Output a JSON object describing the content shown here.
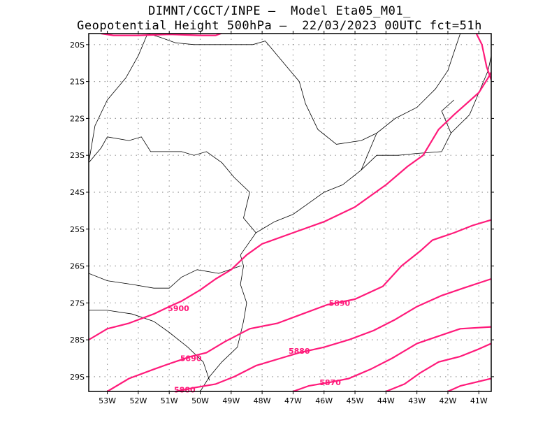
{
  "title_line1": "DIMNT/CGCT/INPE –  Model Eta05_M01_",
  "title_line2": "Geopotential Height 500hPa –  22/03/2023 00UTC fct=51h",
  "contour_color": "#ff1a7a",
  "map": {
    "lon_range": [
      -53.6,
      -40.6
    ],
    "lat_range": [
      -29.4,
      -19.7
    ],
    "lat_ticks": [
      {
        "value": -20,
        "label": "20S"
      },
      {
        "value": -21,
        "label": "21S"
      },
      {
        "value": -22,
        "label": "22S"
      },
      {
        "value": -23,
        "label": "23S"
      },
      {
        "value": -24,
        "label": "24S"
      },
      {
        "value": -25,
        "label": "25S"
      },
      {
        "value": -26,
        "label": "26S"
      },
      {
        "value": -27,
        "label": "27S"
      },
      {
        "value": -28,
        "label": "28S"
      },
      {
        "value": -29,
        "label": "29S"
      }
    ],
    "lon_ticks": [
      {
        "value": -53,
        "label": "53W"
      },
      {
        "value": -52,
        "label": "52W"
      },
      {
        "value": -51,
        "label": "51W"
      },
      {
        "value": -50,
        "label": "50W"
      },
      {
        "value": -49,
        "label": "49W"
      },
      {
        "value": -48,
        "label": "48W"
      },
      {
        "value": -47,
        "label": "47W"
      },
      {
        "value": -46,
        "label": "46W"
      },
      {
        "value": -45,
        "label": "45W"
      },
      {
        "value": -44,
        "label": "44W"
      },
      {
        "value": -43,
        "label": "43W"
      },
      {
        "value": -42,
        "label": "42W"
      },
      {
        "value": -41,
        "label": "41W"
      }
    ],
    "grid": "dotted"
  },
  "contour_labels": [
    {
      "text": "5900",
      "lon": -50.7,
      "lat": -27.15
    },
    {
      "text": "5890",
      "lon": -50.3,
      "lat": -28.5
    },
    {
      "text": "5890",
      "lon": -45.5,
      "lat": -27.0
    },
    {
      "text": "5880",
      "lon": -46.8,
      "lat": -28.3
    },
    {
      "text": "5880",
      "lon": -50.5,
      "lat": -29.35
    },
    {
      "text": "5870",
      "lon": -45.8,
      "lat": -29.15
    }
  ],
  "contours": [
    {
      "name": "5910-top",
      "pts": [
        [
          -53.2,
          -19.7
        ],
        [
          -52.8,
          -19.75
        ],
        [
          -52.0,
          -19.75
        ],
        [
          -51.0,
          -19.72
        ],
        [
          -50.0,
          -19.75
        ],
        [
          -49.5,
          -19.75
        ],
        [
          -49.0,
          -19.6
        ]
      ]
    },
    {
      "name": "5910-east",
      "pts": [
        [
          -41.2,
          -19.5
        ],
        [
          -40.9,
          -20.0
        ],
        [
          -40.75,
          -20.6
        ],
        [
          -40.6,
          -20.95
        ]
      ]
    },
    {
      "name": "5900",
      "pts": [
        [
          -53.6,
          -28.0
        ],
        [
          -53.0,
          -27.7
        ],
        [
          -52.3,
          -27.55
        ],
        [
          -51.5,
          -27.3
        ],
        [
          -51.0,
          -27.1
        ],
        [
          -50.6,
          -26.95
        ],
        [
          -50.0,
          -26.65
        ],
        [
          -49.5,
          -26.35
        ],
        [
          -49.0,
          -26.1
        ],
        [
          -48.5,
          -25.7
        ],
        [
          -48.0,
          -25.4
        ],
        [
          -47.0,
          -25.1
        ],
        [
          -46.0,
          -24.8
        ],
        [
          -45.0,
          -24.4
        ],
        [
          -44.0,
          -23.8
        ],
        [
          -43.3,
          -23.3
        ],
        [
          -42.8,
          -23.0
        ],
        [
          -42.3,
          -22.3
        ],
        [
          -41.8,
          -21.9
        ],
        [
          -41.0,
          -21.3
        ],
        [
          -40.7,
          -20.9
        ],
        [
          -40.6,
          -20.75
        ]
      ]
    },
    {
      "name": "5890",
      "pts": [
        [
          -53.0,
          -29.4
        ],
        [
          -52.3,
          -29.05
        ],
        [
          -51.5,
          -28.8
        ],
        [
          -51.0,
          -28.65
        ],
        [
          -50.3,
          -28.45
        ],
        [
          -49.8,
          -28.35
        ],
        [
          -49.2,
          -28.05
        ],
        [
          -48.4,
          -27.7
        ],
        [
          -47.5,
          -27.55
        ],
        [
          -46.7,
          -27.3
        ],
        [
          -45.9,
          -27.05
        ],
        [
          -45.0,
          -26.9
        ],
        [
          -44.1,
          -26.55
        ],
        [
          -43.5,
          -26.0
        ],
        [
          -42.9,
          -25.6
        ],
        [
          -42.5,
          -25.3
        ],
        [
          -41.8,
          -25.1
        ],
        [
          -41.2,
          -24.9
        ],
        [
          -40.6,
          -24.75
        ]
      ]
    },
    {
      "name": "5880",
      "pts": [
        [
          -50.8,
          -29.4
        ],
        [
          -50.2,
          -29.3
        ],
        [
          -49.5,
          -29.2
        ],
        [
          -48.9,
          -29.0
        ],
        [
          -48.2,
          -28.7
        ],
        [
          -47.4,
          -28.5
        ],
        [
          -46.8,
          -28.35
        ],
        [
          -46.0,
          -28.2
        ],
        [
          -45.2,
          -28.0
        ],
        [
          -44.4,
          -27.75
        ],
        [
          -43.7,
          -27.45
        ],
        [
          -43.0,
          -27.1
        ],
        [
          -42.2,
          -26.8
        ],
        [
          -41.5,
          -26.6
        ],
        [
          -40.6,
          -26.35
        ]
      ]
    },
    {
      "name": "5870",
      "pts": [
        [
          -47.0,
          -29.4
        ],
        [
          -46.5,
          -29.25
        ],
        [
          -45.8,
          -29.15
        ],
        [
          -45.2,
          -29.05
        ],
        [
          -44.5,
          -28.8
        ],
        [
          -43.8,
          -28.5
        ],
        [
          -43.0,
          -28.1
        ],
        [
          -42.3,
          -27.9
        ],
        [
          -41.6,
          -27.7
        ],
        [
          -40.6,
          -27.65
        ]
      ]
    },
    {
      "name": "5860",
      "pts": [
        [
          -44.0,
          -29.4
        ],
        [
          -43.4,
          -29.2
        ],
        [
          -42.9,
          -28.9
        ],
        [
          -42.3,
          -28.6
        ],
        [
          -41.6,
          -28.45
        ],
        [
          -41.0,
          -28.25
        ],
        [
          -40.6,
          -28.1
        ]
      ]
    },
    {
      "name": "5850",
      "pts": [
        [
          -42.0,
          -29.4
        ],
        [
          -41.6,
          -29.25
        ],
        [
          -41.1,
          -29.15
        ],
        [
          -40.6,
          -29.05
        ]
      ]
    }
  ],
  "coastline": [
    [
      -48.7,
      -25.7
    ],
    [
      -48.6,
      -26.0
    ],
    [
      -48.7,
      -26.5
    ],
    [
      -48.5,
      -27.0
    ],
    [
      -48.6,
      -27.5
    ],
    [
      -48.8,
      -28.2
    ],
    [
      -49.3,
      -28.6
    ],
    [
      -49.7,
      -29.0
    ],
    [
      -50.0,
      -29.4
    ]
  ],
  "coastline_north": [
    [
      -48.7,
      -25.7
    ],
    [
      -48.2,
      -25.1
    ],
    [
      -47.6,
      -24.8
    ],
    [
      -47.0,
      -24.6
    ],
    [
      -46.5,
      -24.3
    ],
    [
      -46.0,
      -24.0
    ],
    [
      -45.4,
      -23.8
    ],
    [
      -44.8,
      -23.4
    ],
    [
      -44.3,
      -23.0
    ],
    [
      -43.6,
      -23.0
    ],
    [
      -43.0,
      -22.95
    ],
    [
      -42.2,
      -22.9
    ],
    [
      -41.9,
      -22.4
    ],
    [
      -41.3,
      -21.9
    ],
    [
      -41.0,
      -21.3
    ],
    [
      -40.7,
      -20.7
    ],
    [
      -40.6,
      -20.3
    ]
  ],
  "borders": [
    [
      [
        -53.6,
        -23.2
      ],
      [
        -53.2,
        -22.8
      ],
      [
        -53.0,
        -22.5
      ],
      [
        -52.3,
        -22.6
      ],
      [
        -51.9,
        -22.5
      ],
      [
        -51.6,
        -22.9
      ],
      [
        -51.0,
        -22.9
      ],
      [
        -50.6,
        -22.9
      ],
      [
        -50.2,
        -23.0
      ],
      [
        -49.8,
        -22.9
      ],
      [
        -49.3,
        -23.2
      ],
      [
        -48.9,
        -23.6
      ],
      [
        -48.4,
        -24.0
      ],
      [
        -48.6,
        -24.7
      ],
      [
        -48.2,
        -25.1
      ]
    ],
    [
      [
        -53.6,
        -26.2
      ],
      [
        -53.0,
        -26.4
      ],
      [
        -52.2,
        -26.5
      ],
      [
        -51.5,
        -26.6
      ],
      [
        -51.0,
        -26.6
      ],
      [
        -50.6,
        -26.3
      ],
      [
        -50.1,
        -26.1
      ],
      [
        -49.4,
        -26.2
      ],
      [
        -48.7,
        -26.0
      ]
    ],
    [
      [
        -53.6,
        -27.2
      ],
      [
        -53.0,
        -27.2
      ],
      [
        -52.2,
        -27.3
      ],
      [
        -51.5,
        -27.5
      ],
      [
        -51.0,
        -27.8
      ],
      [
        -50.4,
        -28.2
      ],
      [
        -49.9,
        -28.6
      ],
      [
        -49.7,
        -29.1
      ]
    ],
    [
      [
        -51.7,
        -19.7
      ],
      [
        -51.3,
        -19.8
      ],
      [
        -50.8,
        -19.95
      ],
      [
        -50.2,
        -20.0
      ],
      [
        -49.6,
        -20.0
      ],
      [
        -49.0,
        -20.0
      ],
      [
        -48.3,
        -20.0
      ],
      [
        -47.9,
        -19.9
      ]
    ],
    [
      [
        -53.6,
        -23.2
      ],
      [
        -53.4,
        -22.2
      ],
      [
        -53.0,
        -21.5
      ],
      [
        -52.4,
        -20.9
      ],
      [
        -52.0,
        -20.3
      ],
      [
        -51.7,
        -19.7
      ]
    ],
    [
      [
        -47.9,
        -19.9
      ],
      [
        -47.3,
        -20.5
      ],
      [
        -46.8,
        -21.0
      ],
      [
        -46.6,
        -21.6
      ],
      [
        -46.2,
        -22.3
      ],
      [
        -45.6,
        -22.7
      ],
      [
        -44.8,
        -22.6
      ],
      [
        -44.3,
        -22.4
      ],
      [
        -43.7,
        -22.0
      ],
      [
        -43.0,
        -21.7
      ],
      [
        -42.4,
        -21.2
      ],
      [
        -42.0,
        -20.7
      ],
      [
        -41.8,
        -20.2
      ],
      [
        -41.6,
        -19.7
      ]
    ],
    [
      [
        -44.3,
        -22.4
      ],
      [
        -44.8,
        -23.4
      ]
    ],
    [
      [
        -41.9,
        -22.4
      ],
      [
        -42.2,
        -21.8
      ],
      [
        -41.8,
        -21.5
      ]
    ]
  ]
}
